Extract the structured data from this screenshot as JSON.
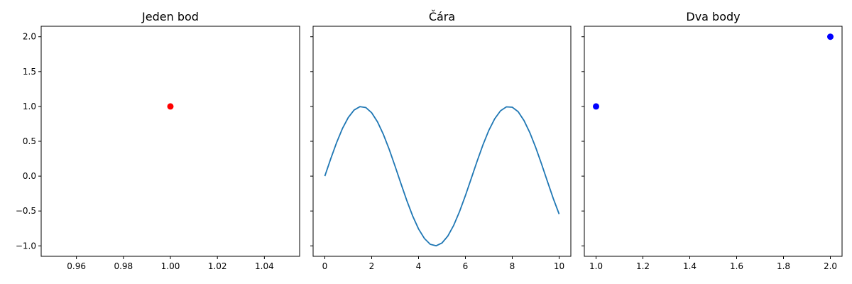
{
  "chart_data": [
    {
      "type": "scatter",
      "title": "Jeden bod",
      "xlabel": "",
      "ylabel": "",
      "xlim": [
        0.945,
        1.055
      ],
      "ylim": [
        -1.15,
        2.15
      ],
      "xticks": [
        0.96,
        0.98,
        1.0,
        1.02,
        1.04
      ],
      "xtick_labels": [
        "0.96",
        "0.98",
        "1.00",
        "1.02",
        "1.04"
      ],
      "yticks": [
        -1.0,
        -0.5,
        0.0,
        0.5,
        1.0,
        1.5,
        2.0
      ],
      "ytick_labels": [
        "−1.0",
        "−0.5",
        "0.0",
        "0.5",
        "1.0",
        "1.5",
        "2.0"
      ],
      "show_yticklabels": true,
      "grid": false,
      "series": [
        {
          "x": [
            1.0
          ],
          "y": [
            1.0
          ],
          "color": "#ff0000",
          "marker": "circle"
        }
      ]
    },
    {
      "type": "line",
      "title": "Čára",
      "xlabel": "",
      "ylabel": "",
      "xlim": [
        -0.5,
        10.5
      ],
      "ylim": [
        -1.15,
        2.15
      ],
      "xticks": [
        0,
        2,
        4,
        6,
        8,
        10
      ],
      "xtick_labels": [
        "0",
        "2",
        "4",
        "6",
        "8",
        "10"
      ],
      "yticks": [
        -1.0,
        -0.5,
        0.0,
        0.5,
        1.0,
        1.5,
        2.0
      ],
      "show_yticklabels": false,
      "grid": false,
      "series": [
        {
          "color": "#1f77b4",
          "x": [
            0,
            0.25,
            0.5,
            0.75,
            1,
            1.25,
            1.5,
            1.75,
            2,
            2.25,
            2.5,
            2.75,
            3,
            3.25,
            3.5,
            3.75,
            4,
            4.25,
            4.5,
            4.75,
            5,
            5.25,
            5.5,
            5.75,
            6,
            6.25,
            6.5,
            6.75,
            7,
            7.25,
            7.5,
            7.75,
            8,
            8.25,
            8.5,
            8.75,
            9,
            9.25,
            9.5,
            9.75,
            10
          ],
          "y": [
            0,
            0.247,
            0.479,
            0.682,
            0.841,
            0.949,
            0.997,
            0.984,
            0.909,
            0.778,
            0.598,
            0.382,
            0.141,
            -0.108,
            -0.351,
            -0.572,
            -0.757,
            -0.894,
            -0.978,
            -0.999,
            -0.959,
            -0.859,
            -0.706,
            -0.508,
            -0.279,
            -0.033,
            0.215,
            0.45,
            0.657,
            0.823,
            0.938,
            0.994,
            0.989,
            0.925,
            0.798,
            0.624,
            0.412,
            0.174,
            -0.075,
            -0.32,
            -0.544
          ]
        }
      ]
    },
    {
      "type": "scatter",
      "title": "Dva body",
      "xlabel": "",
      "ylabel": "",
      "xlim": [
        0.95,
        2.05
      ],
      "ylim": [
        -1.15,
        2.15
      ],
      "xticks": [
        1.0,
        1.2,
        1.4,
        1.6,
        1.8,
        2.0
      ],
      "xtick_labels": [
        "1.0",
        "1.2",
        "1.4",
        "1.6",
        "1.8",
        "2.0"
      ],
      "yticks": [
        -1.0,
        -0.5,
        0.0,
        0.5,
        1.0,
        1.5,
        2.0
      ],
      "show_yticklabels": false,
      "grid": false,
      "series": [
        {
          "x": [
            1.0,
            2.0
          ],
          "y": [
            1.0,
            2.0
          ],
          "color": "#0000ff",
          "marker": "circle"
        }
      ]
    }
  ]
}
